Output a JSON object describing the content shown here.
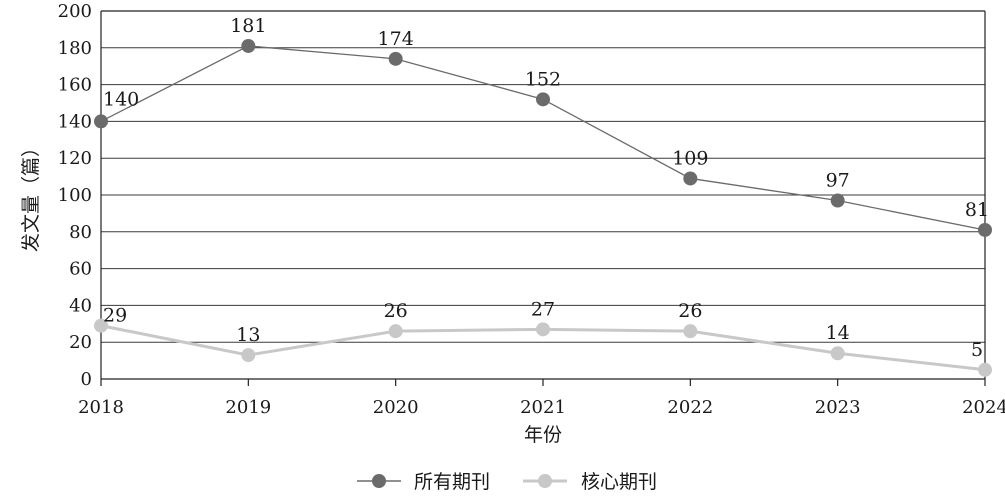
{
  "chart_data": {
    "type": "line",
    "categories": [
      "2018",
      "2019",
      "2020",
      "2021",
      "2022",
      "2023",
      "2024"
    ],
    "series": [
      {
        "name": "所有期刊",
        "values": [
          140,
          181,
          174,
          152,
          109,
          97,
          81
        ],
        "color": "#6b6b6b",
        "marker_color": "#6b6b6b"
      },
      {
        "name": "核心期刊",
        "values": [
          29,
          13,
          26,
          27,
          26,
          14,
          5
        ],
        "color": "#c8c8c8",
        "marker_color": "#c8c8c8"
      }
    ],
    "xlabel": "年份",
    "ylabel": "发文量（篇）",
    "ylim": [
      0,
      200
    ],
    "yticks": [
      0,
      20,
      40,
      60,
      80,
      100,
      120,
      140,
      160,
      180,
      200
    ],
    "grid": true,
    "legend_position": "bottom-center"
  }
}
